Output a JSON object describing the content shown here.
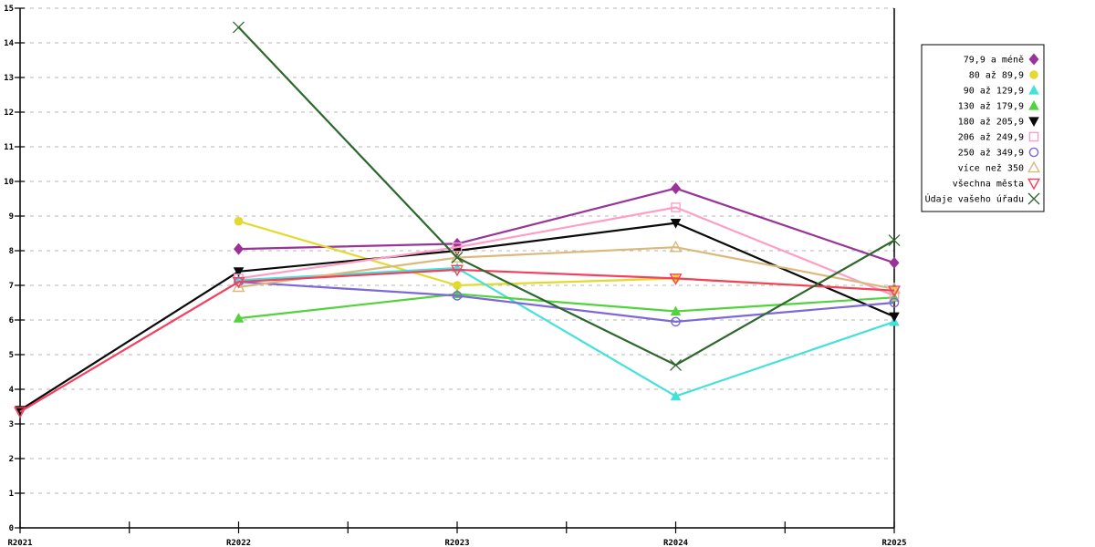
{
  "chart_data": {
    "type": "line",
    "title": "",
    "xlabel": "",
    "ylabel": "",
    "x_categories": [
      "R2021",
      "R2022",
      "R2023",
      "R2024",
      "R2025"
    ],
    "ylim": [
      0,
      15
    ],
    "y_tick_step": 1,
    "grid": "horizontal-dashed",
    "grid_color": "#b4b4b4",
    "axis_color": "#000000",
    "background_color": "#ffffff",
    "legend_position": "right",
    "series": [
      {
        "name": "79,9 a méně",
        "color": "#993399",
        "marker": "diamond-filled",
        "values": [
          null,
          8.05,
          8.2,
          9.8,
          7.65
        ]
      },
      {
        "name": "80 až 89,9",
        "color": "#e4d92e",
        "marker": "circle-filled",
        "values": [
          null,
          8.85,
          7.0,
          7.2,
          6.85
        ]
      },
      {
        "name": "90 až 129,9",
        "color": "#43e1da",
        "marker": "triangle-filled",
        "values": [
          null,
          7.15,
          7.5,
          3.8,
          5.95
        ]
      },
      {
        "name": "130 až 179,9",
        "color": "#52d23c",
        "marker": "triangle-filled",
        "values": [
          null,
          6.05,
          6.75,
          6.25,
          6.65
        ]
      },
      {
        "name": "180 až 205,9",
        "color": "#0a0a0a",
        "marker": "triangle-down-filled",
        "values": [
          3.4,
          7.4,
          8.0,
          8.8,
          6.1
        ]
      },
      {
        "name": "206 až 249,9",
        "color": "#ff9ec5",
        "marker": "square-open",
        "values": [
          null,
          7.2,
          8.1,
          9.25,
          6.7
        ]
      },
      {
        "name": "250 až 349,9",
        "color": "#7c68d8",
        "marker": "circle-open",
        "values": [
          null,
          7.1,
          6.7,
          5.95,
          6.5
        ]
      },
      {
        "name": "více než 350",
        "color": "#d9b97e",
        "marker": "triangle-open",
        "values": [
          null,
          6.95,
          7.8,
          8.1,
          6.9
        ]
      },
      {
        "name": "všechna města",
        "color": "#f4405f",
        "marker": "triangle-down-open",
        "values": [
          3.35,
          7.1,
          7.45,
          7.2,
          6.85
        ]
      },
      {
        "name": "Údaje vašeho úřadu",
        "color": "#2e672e",
        "marker": "x",
        "values": [
          null,
          14.45,
          7.8,
          4.7,
          8.3
        ]
      }
    ]
  }
}
